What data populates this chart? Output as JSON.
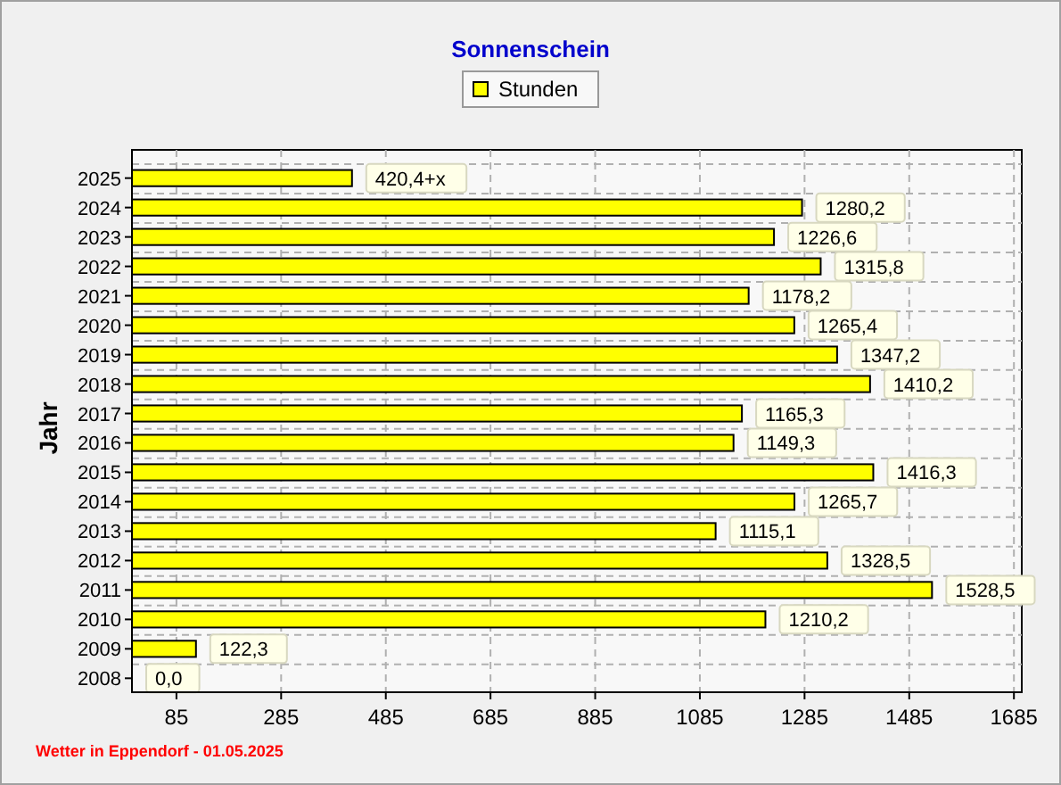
{
  "chart_data": {
    "type": "bar",
    "orientation": "horizontal",
    "title": "Sonnenschein",
    "ylabel": "Jahr",
    "legend": "top",
    "categories": [
      "2025",
      "2024",
      "2023",
      "2022",
      "2021",
      "2020",
      "2019",
      "2018",
      "2017",
      "2016",
      "2015",
      "2014",
      "2013",
      "2012",
      "2011",
      "2010",
      "2009",
      "2008"
    ],
    "series": [
      {
        "name": "Stunden",
        "color": "#ffff00",
        "values": [
          420.4,
          1280.2,
          1226.6,
          1315.8,
          1178.2,
          1265.4,
          1347.2,
          1410.2,
          1165.3,
          1149.3,
          1416.3,
          1265.7,
          1115.1,
          1328.5,
          1528.5,
          1210.2,
          122.3,
          0
        ]
      }
    ],
    "value_labels": [
      "420,4+x",
      "1280,2",
      "1226,6",
      "1315,8",
      "1178,2",
      "1265,4",
      "1347,2",
      "1410,2",
      "1165,3",
      "1149,3",
      "1416,3",
      "1265,7",
      "1115,1",
      "1328,5",
      "1528,5",
      "1210,2",
      "122,3",
      "0,0"
    ],
    "xlim": [
      0,
      1700
    ],
    "xticks": [
      85,
      285,
      485,
      685,
      885,
      1085,
      1285,
      1485,
      1685
    ],
    "grid": true,
    "annotations": [
      "Wetter in Eppendorf - 01.05.2025"
    ]
  }
}
